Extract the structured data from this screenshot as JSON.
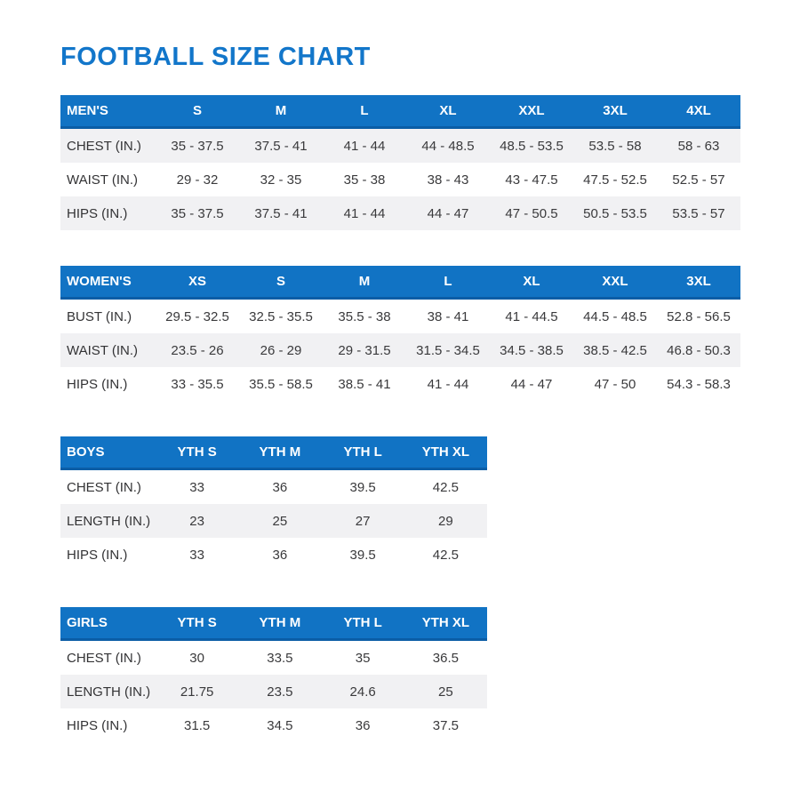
{
  "page_title": "FOOTBALL SIZE CHART",
  "colors": {
    "title_blue": "#1276ca",
    "header_blue": "#1173c4",
    "header_border_blue": "#0b5da6",
    "shaded_row": "#f1f1f3",
    "body_text": "#3a3a3c",
    "header_text": "#ffffff"
  },
  "chart_data": [
    {
      "type": "table",
      "category": "MEN'S",
      "header": [
        "MEN'S",
        "S",
        "M",
        "L",
        "XL",
        "XXL",
        "3XL",
        "4XL"
      ],
      "rows": [
        {
          "label": "CHEST (IN.)",
          "values": [
            "35 - 37.5",
            "37.5 - 41",
            "41 - 44",
            "44 - 48.5",
            "48.5 - 53.5",
            "53.5 - 58",
            "58 - 63"
          ]
        },
        {
          "label": "WAIST (IN.)",
          "values": [
            "29 - 32",
            "32 - 35",
            "35 - 38",
            "38 - 43",
            "43 - 47.5",
            "47.5 - 52.5",
            "52.5 - 57"
          ]
        },
        {
          "label": "HIPS (IN.)",
          "values": [
            "35 - 37.5",
            "37.5 - 41",
            "41 - 44",
            "44 - 47",
            "47 - 50.5",
            "50.5 - 53.5",
            "53.5 - 57"
          ]
        }
      ],
      "shaded_rows": [
        0,
        2
      ],
      "layout": "wide"
    },
    {
      "type": "table",
      "category": "WOMEN'S",
      "header": [
        "WOMEN'S",
        "XS",
        "S",
        "M",
        "L",
        "XL",
        "XXL",
        "3XL"
      ],
      "rows": [
        {
          "label": "BUST (IN.)",
          "values": [
            "29.5 - 32.5",
            "32.5 - 35.5",
            "35.5 - 38",
            "38 - 41",
            "41 - 44.5",
            "44.5 - 48.5",
            "52.8 - 56.5"
          ]
        },
        {
          "label": "WAIST (IN.)",
          "values": [
            "23.5 - 26",
            "26 - 29",
            "29 - 31.5",
            "31.5 - 34.5",
            "34.5 - 38.5",
            "38.5 - 42.5",
            "46.8 - 50.3"
          ]
        },
        {
          "label": "HIPS (IN.)",
          "values": [
            "33 - 35.5",
            "35.5 - 58.5",
            "38.5 - 41",
            "41 - 44",
            "44 - 47",
            "47 - 50",
            "54.3 - 58.3"
          ]
        }
      ],
      "shaded_rows": [
        1
      ],
      "layout": "wide"
    },
    {
      "type": "table",
      "category": "BOYS",
      "header": [
        "BOYS",
        "YTH S",
        "YTH M",
        "YTH L",
        "YTH XL"
      ],
      "rows": [
        {
          "label": "CHEST (IN.)",
          "values": [
            "33",
            "36",
            "39.5",
            "42.5"
          ]
        },
        {
          "label": "LENGTH (IN.)",
          "values": [
            "23",
            "25",
            "27",
            "29"
          ]
        },
        {
          "label": "HIPS (IN.)",
          "values": [
            "33",
            "36",
            "39.5",
            "42.5"
          ]
        }
      ],
      "shaded_rows": [
        1
      ],
      "layout": "narrow"
    },
    {
      "type": "table",
      "category": "GIRLS",
      "header": [
        "GIRLS",
        "YTH S",
        "YTH M",
        "YTH L",
        "YTH XL"
      ],
      "rows": [
        {
          "label": "CHEST (IN.)",
          "values": [
            "30",
            "33.5",
            "35",
            "36.5"
          ]
        },
        {
          "label": "LENGTH (IN.)",
          "values": [
            "21.75",
            "23.5",
            "24.6",
            "25"
          ]
        },
        {
          "label": "HIPS (IN.)",
          "values": [
            "31.5",
            "34.5",
            "36",
            "37.5"
          ]
        }
      ],
      "shaded_rows": [
        1
      ],
      "layout": "narrow"
    }
  ]
}
